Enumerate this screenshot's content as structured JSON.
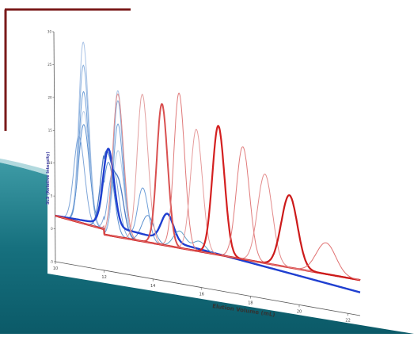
{
  "background": {
    "teal_dark": "#0b5a68",
    "teal_mid": "#2b8a96",
    "frame_color": "#7a1a1a"
  },
  "chart_data": {
    "type": "line",
    "xlabel": "Elution Volume (mL)",
    "ylabel": "SLS (Relative Intensity)",
    "x_ticks": [
      "10",
      "12",
      "14",
      "16",
      "18",
      "20",
      "22"
    ],
    "y_ticks": [
      "-5",
      "0",
      "5",
      "10",
      "15",
      "20",
      "25",
      "30"
    ],
    "xlim": [
      10,
      22.5
    ],
    "ylim": [
      -5,
      30
    ],
    "grid": false,
    "legend": "none",
    "series": [
      {
        "color": "#a9c3e6",
        "width": 1.0,
        "peaks": [
          [
            11.2,
            27.5,
            0.2
          ],
          [
            12.6,
            22.0,
            0.2
          ]
        ]
      },
      {
        "color": "#8ab0dd",
        "width": 1.0,
        "peaks": [
          [
            11.2,
            24.0,
            0.2
          ],
          [
            12.6,
            20.5,
            0.2
          ]
        ]
      },
      {
        "color": "#6f9fd8",
        "width": 1.0,
        "peaks": [
          [
            11.2,
            20.0,
            0.2
          ],
          [
            12.6,
            17.0,
            0.2
          ],
          [
            13.6,
            8.0,
            0.22
          ]
        ]
      },
      {
        "color": "#b7cce8",
        "width": 1.0,
        "peaks": [
          [
            11.2,
            17.0,
            0.22
          ],
          [
            12.6,
            13.0,
            0.22
          ]
        ]
      },
      {
        "color": "#5a8fcf",
        "width": 1.0,
        "peaks": [
          [
            11.2,
            15.0,
            0.22
          ],
          [
            12.2,
            11.0,
            0.22
          ],
          [
            13.8,
            4.0,
            0.25
          ]
        ]
      },
      {
        "color": "#7fa6d9",
        "width": 1.0,
        "peaks": [
          [
            11.0,
            13.0,
            0.22
          ],
          [
            12.4,
            10.0,
            0.22
          ]
        ]
      },
      {
        "color": "#4d7cc4",
        "width": 1.3,
        "peaks": [
          [
            12.1,
            12.0,
            0.22
          ],
          [
            12.6,
            8.0,
            0.22
          ]
        ]
      },
      {
        "color": "#1f3fd0",
        "width": 2.4,
        "peaks": [
          [
            12.2,
            11.5,
            0.22
          ],
          [
            14.6,
            4.0,
            0.25
          ]
        ],
        "slope": true
      },
      {
        "color": "#5fa0c8",
        "width": 1.0,
        "peaks": [
          [
            15.1,
            2.5,
            0.25
          ],
          [
            15.9,
            1.5,
            0.25
          ]
        ]
      },
      {
        "color": "#e08a8a",
        "width": 1.0,
        "peaks": [
          [
            12.6,
            21.5,
            0.22
          ]
        ]
      },
      {
        "color": "#e3a0a0",
        "width": 1.0,
        "peaks": [
          [
            13.6,
            22.0,
            0.22
          ]
        ]
      },
      {
        "color": "#d95050",
        "width": 2.0,
        "peaks": [
          [
            14.4,
            21.0,
            0.22
          ]
        ]
      },
      {
        "color": "#e07a7a",
        "width": 1.0,
        "peaks": [
          [
            15.1,
            23.0,
            0.22
          ]
        ]
      },
      {
        "color": "#e69c9c",
        "width": 1.0,
        "peaks": [
          [
            15.8,
            18.0,
            0.24
          ]
        ]
      },
      {
        "color": "#d42020",
        "width": 2.2,
        "peaks": [
          [
            16.7,
            19.0,
            0.25
          ]
        ]
      },
      {
        "color": "#e07a7a",
        "width": 1.0,
        "peaks": [
          [
            17.7,
            16.5,
            0.27
          ]
        ]
      },
      {
        "color": "#e38a8a",
        "width": 1.0,
        "peaks": [
          [
            18.6,
            13.0,
            0.3
          ]
        ]
      },
      {
        "color": "#cc1a1a",
        "width": 2.2,
        "peaks": [
          [
            19.6,
            10.5,
            0.33
          ]
        ]
      },
      {
        "color": "#e07070",
        "width": 1.0,
        "peaks": [
          [
            21.1,
            4.5,
            0.4
          ]
        ]
      }
    ]
  }
}
